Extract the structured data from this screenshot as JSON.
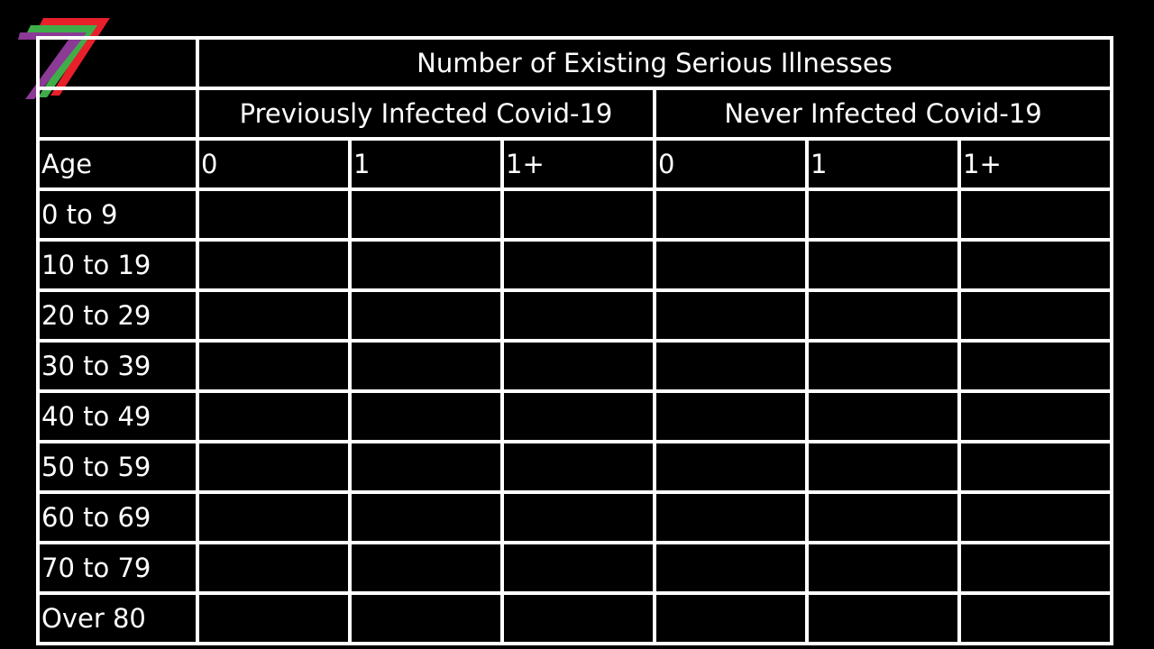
{
  "chart_data": {
    "type": "table",
    "title": "Number of Existing Serious Illnesses",
    "groups": [
      "Previously Infected Covid-19",
      "Never Infected Covid-19"
    ],
    "row_header": "Age",
    "columns": [
      "0",
      "1",
      "1+",
      "0",
      "1",
      "1+"
    ],
    "rows": [
      "0 to 9",
      "10 to 19",
      "20 to 29",
      "30 to 39",
      "40 to 49",
      "50 to 59",
      "60 to 69",
      "70 to 79",
      "Over 80"
    ],
    "values": [
      [
        "",
        "",
        "",
        "",
        "",
        ""
      ],
      [
        "",
        "",
        "",
        "",
        "",
        ""
      ],
      [
        "",
        "",
        "",
        "",
        "",
        ""
      ],
      [
        "",
        "",
        "",
        "",
        "",
        ""
      ],
      [
        "",
        "",
        "",
        "",
        "",
        ""
      ],
      [
        "",
        "",
        "",
        "",
        "",
        ""
      ],
      [
        "",
        "",
        "",
        "",
        "",
        ""
      ],
      [
        "",
        "",
        "",
        "",
        "",
        ""
      ],
      [
        "",
        "",
        "",
        "",
        "",
        ""
      ]
    ]
  },
  "colors": {
    "background": "#000000",
    "grid": "#ffffff",
    "text": "#ffffff",
    "logo_red": "#e8202a",
    "logo_green": "#3fae49",
    "logo_purple": "#8b3a96"
  },
  "icons": {
    "logo": "seven-stripes-logo-icon"
  }
}
